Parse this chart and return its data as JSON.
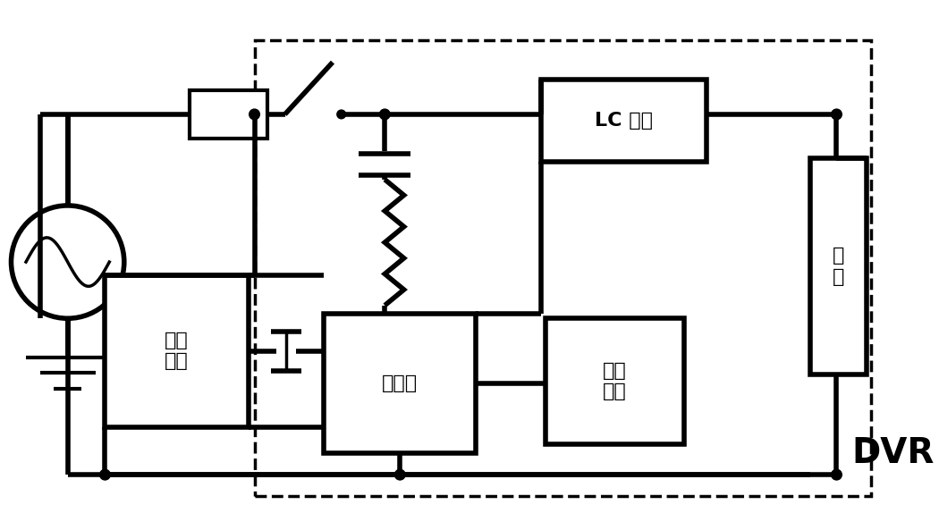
{
  "bg_color": "#ffffff",
  "lw": 4.0,
  "thin_lw": 2.5,
  "fig_width": 10.5,
  "fig_height": 5.93,
  "dvr_label": "DVR",
  "lc_label": "LC 滤波",
  "load_label": "负\n载",
  "storage_label": "储能\n装置",
  "inverter_label": "逆变器",
  "control_label": "控制\n电路"
}
